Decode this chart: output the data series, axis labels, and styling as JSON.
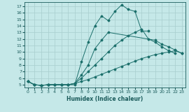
{
  "xlabel": "Humidex (Indice chaleur)",
  "background_color": "#c5e8e8",
  "grid_color": "#a8cece",
  "line_color": "#1a6e6a",
  "xlim": [
    -0.5,
    23.5
  ],
  "ylim": [
    4.6,
    17.6
  ],
  "xticks": [
    0,
    1,
    2,
    3,
    4,
    5,
    6,
    7,
    8,
    9,
    10,
    11,
    12,
    13,
    14,
    15,
    16,
    17,
    18,
    19,
    20,
    21,
    22,
    23
  ],
  "yticks": [
    5,
    6,
    7,
    8,
    9,
    10,
    11,
    12,
    13,
    14,
    15,
    16,
    17
  ],
  "lines": [
    {
      "x": [
        0,
        1,
        2,
        3,
        4,
        5,
        6,
        7,
        8,
        9,
        10,
        11,
        12,
        13,
        14,
        15,
        16,
        17,
        18,
        19,
        20,
        21,
        22,
        23
      ],
      "y": [
        5.5,
        5.0,
        4.9,
        5.0,
        5.0,
        5.0,
        5.0,
        5.0,
        8.5,
        11.5,
        14.0,
        15.5,
        14.8,
        16.2,
        17.2,
        16.5,
        16.2,
        13.2,
        13.2,
        null,
        null,
        null,
        null,
        null
      ]
    },
    {
      "x": [
        0,
        1,
        2,
        3,
        4,
        5,
        6,
        7,
        8,
        9,
        10,
        11,
        12,
        13,
        14,
        15,
        16,
        17,
        18,
        19,
        20,
        21,
        22,
        23
      ],
      "y": [
        5.5,
        5.0,
        4.9,
        5.0,
        5.0,
        5.0,
        5.0,
        5.2,
        6.5,
        8.0,
        10.5,
        11.8,
        13.0,
        null,
        null,
        null,
        null,
        null,
        null,
        11.8,
        11.2,
        10.8,
        10.3,
        9.8
      ]
    },
    {
      "x": [
        0,
        1,
        2,
        3,
        4,
        5,
        6,
        7,
        8,
        9,
        10,
        11,
        12,
        13,
        14,
        15,
        16,
        17,
        18,
        19,
        20,
        21,
        22,
        23
      ],
      "y": [
        5.5,
        5.0,
        4.9,
        5.0,
        5.0,
        5.0,
        5.0,
        5.2,
        6.0,
        7.0,
        8.0,
        9.0,
        10.0,
        11.0,
        11.8,
        12.5,
        13.0,
        13.5,
        12.0,
        11.5,
        10.8,
        10.2,
        9.8,
        null
      ]
    },
    {
      "x": [
        0,
        1,
        2,
        3,
        4,
        5,
        6,
        7,
        8,
        9,
        10,
        11,
        12,
        13,
        14,
        15,
        16,
        17,
        18,
        19,
        20,
        21,
        22,
        23
      ],
      "y": [
        5.5,
        5.0,
        4.9,
        5.0,
        5.0,
        5.0,
        5.0,
        5.2,
        5.5,
        5.8,
        6.2,
        6.6,
        7.0,
        7.4,
        7.8,
        8.2,
        8.6,
        9.0,
        9.3,
        9.6,
        9.8,
        10.0,
        10.2,
        9.8
      ]
    }
  ]
}
